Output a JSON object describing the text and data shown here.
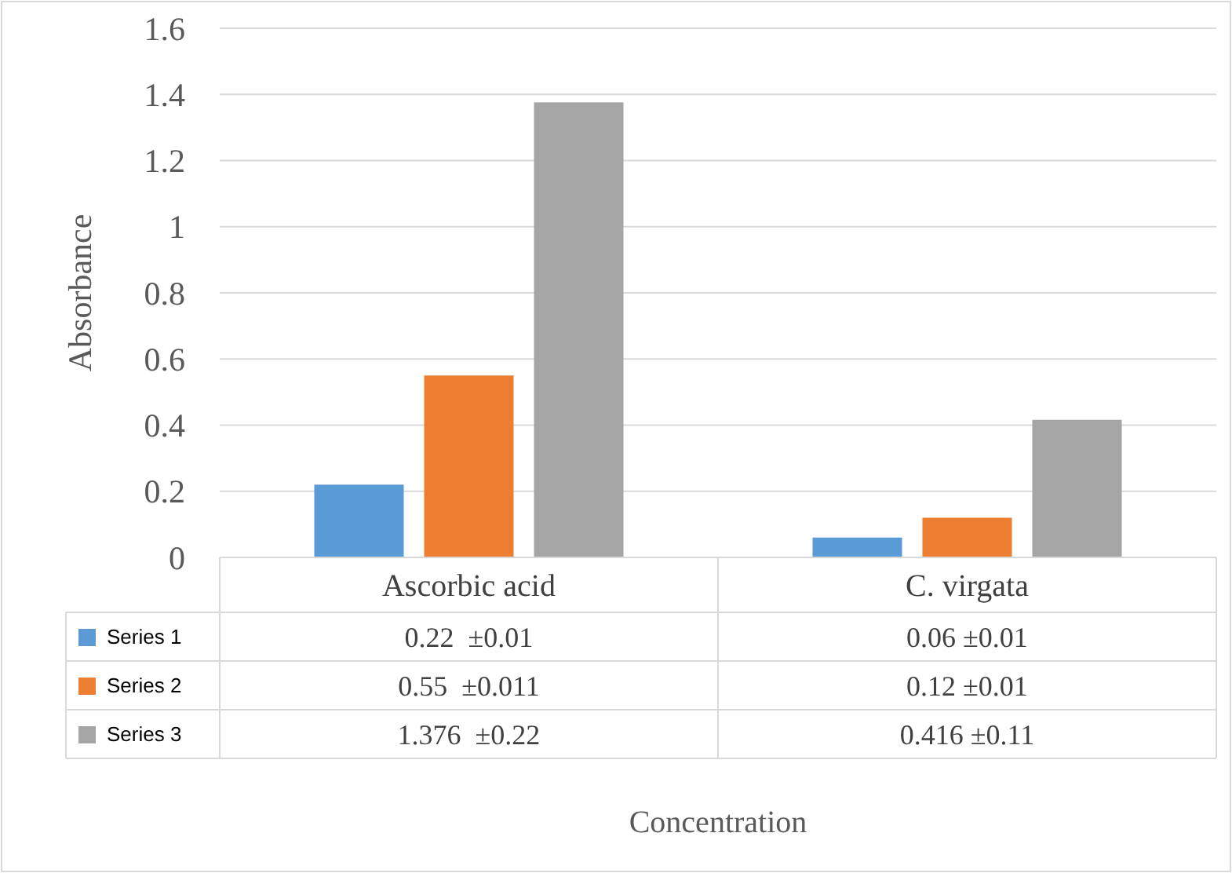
{
  "chart_data": {
    "type": "bar",
    "annotations": [
      "Concentration"
    ],
    "ylabel": "Absorbance",
    "categories": [
      "Ascorbic acid",
      "C. virgata"
    ],
    "series": [
      {
        "name": "Series 1",
        "color": "#5b9bd5",
        "values": [
          0.22,
          0.06
        ],
        "value_labels": [
          "0.22  ±0.01",
          "0.06 ±0.01"
        ]
      },
      {
        "name": "Series 2",
        "color": "#ed7d31",
        "values": [
          0.55,
          0.12
        ],
        "value_labels": [
          "0.55  ±0.011",
          "0.12 ±0.01"
        ]
      },
      {
        "name": "Series 3",
        "color": "#a5a5a5",
        "values": [
          1.376,
          0.416
        ],
        "value_labels": [
          "1.376  ±0.22",
          "0.416 ±0.11"
        ]
      }
    ],
    "ylim": [
      0,
      1.6
    ],
    "yticks": [
      0,
      0.2,
      0.4,
      0.6,
      0.8,
      1,
      1.2,
      1.4,
      1.6
    ],
    "grid": "y",
    "legend": "bottom"
  }
}
